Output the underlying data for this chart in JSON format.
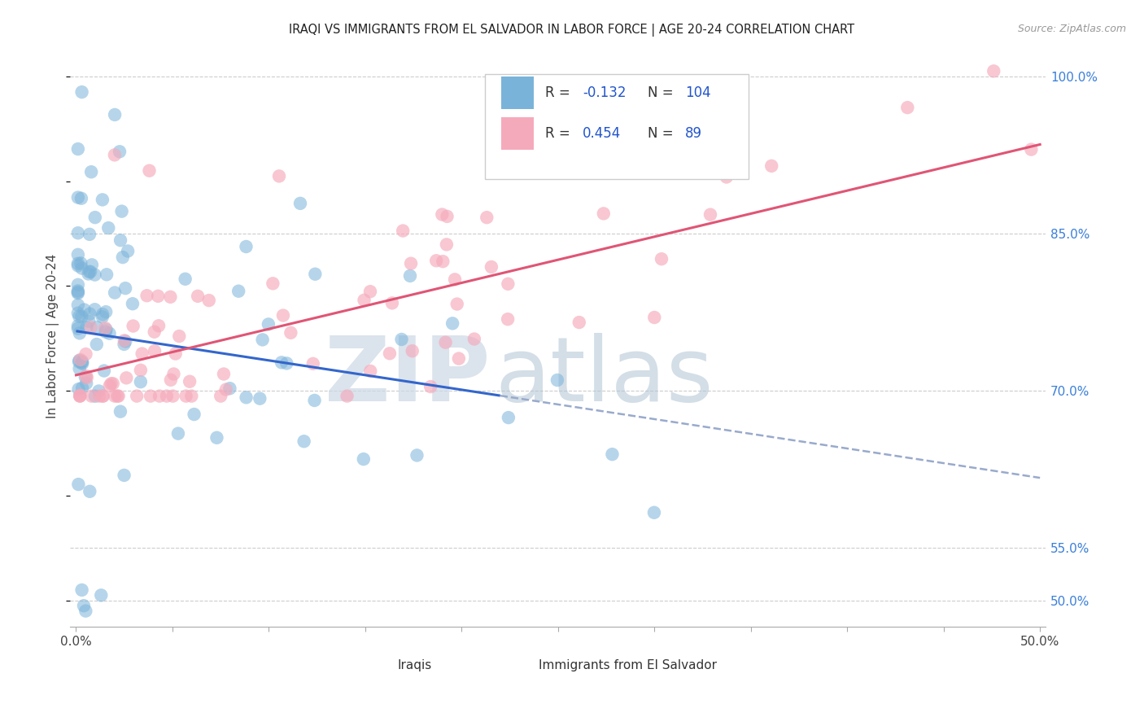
{
  "title": "IRAQI VS IMMIGRANTS FROM EL SALVADOR IN LABOR FORCE | AGE 20-24 CORRELATION CHART",
  "source": "Source: ZipAtlas.com",
  "ylabel": "In Labor Force | Age 20-24",
  "xlim": [
    -0.003,
    0.503
  ],
  "ylim": [
    0.475,
    1.03
  ],
  "iraqi_color": "#7ab3d9",
  "elsalvador_color": "#f5aabb",
  "iraqi_R": -0.132,
  "iraqi_N": 104,
  "elsalvador_R": 0.454,
  "elsalvador_N": 89,
  "legend_label_1": "Iraqis",
  "legend_label_2": "Immigrants from El Salvador",
  "background_color": "#ffffff",
  "grid_color": "#cccccc",
  "right_yticks": [
    0.5,
    0.55,
    0.7,
    0.85,
    1.0
  ],
  "right_yticklabels": [
    "50.0%",
    "55.0%",
    "70.0%",
    "85.0%",
    "100.0%"
  ],
  "xticks": [
    0.0,
    0.05,
    0.1,
    0.15,
    0.2,
    0.25,
    0.3,
    0.35,
    0.4,
    0.45,
    0.5
  ],
  "xticklabels": [
    "0.0%",
    "",
    "",
    "",
    "",
    "",
    "",
    "",
    "",
    "",
    "50.0%"
  ],
  "iraqi_line_color": "#3366cc",
  "iraqi_line_dash_color": "#99aacc",
  "elsalvador_line_color": "#e05575",
  "legend_text_color": "#333333",
  "legend_val_color": "#2255cc",
  "watermark_zip_color": "#ccd8e5",
  "watermark_atlas_color": "#b0c4d4"
}
